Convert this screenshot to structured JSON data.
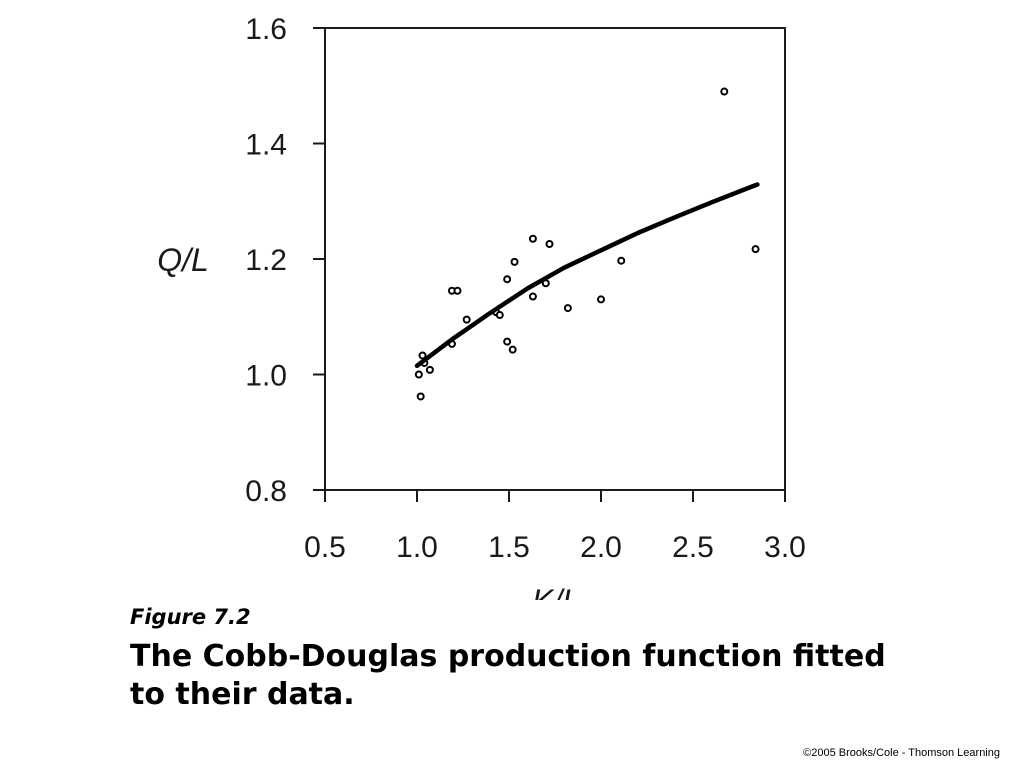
{
  "caption": {
    "figure_label": "Figure 7.2",
    "title": "The Cobb-Douglas production function fitted to their data."
  },
  "credit": "©2005 Brooks/Cole - Thomson Learning",
  "chart_data": {
    "type": "scatter",
    "title": "",
    "xlabel": "K/L",
    "ylabel": "Q/L",
    "xlim": [
      0.5,
      3.0
    ],
    "ylim": [
      0.8,
      1.6
    ],
    "xticks": [
      "0.5",
      "1.0",
      "1.5",
      "2.0",
      "2.5",
      "3.0"
    ],
    "yticks": [
      "0.8",
      "1.0",
      "1.2",
      "1.4",
      "1.6"
    ],
    "grid": false,
    "series": [
      {
        "kind": "points",
        "marker": "hollow-circle",
        "color": "#000000",
        "points": [
          [
            1.01,
            1.0
          ],
          [
            1.02,
            0.962
          ],
          [
            1.03,
            1.033
          ],
          [
            1.04,
            1.02
          ],
          [
            1.07,
            1.008
          ],
          [
            1.19,
            1.053
          ],
          [
            1.19,
            1.145
          ],
          [
            1.22,
            1.145
          ],
          [
            1.27,
            1.095
          ],
          [
            1.43,
            1.108
          ],
          [
            1.45,
            1.103
          ],
          [
            1.49,
            1.057
          ],
          [
            1.49,
            1.165
          ],
          [
            1.52,
            1.043
          ],
          [
            1.53,
            1.195
          ],
          [
            1.63,
            1.235
          ],
          [
            1.63,
            1.135
          ],
          [
            1.7,
            1.158
          ],
          [
            1.72,
            1.226
          ],
          [
            1.82,
            1.115
          ],
          [
            2.0,
            1.13
          ],
          [
            2.11,
            1.197
          ],
          [
            2.67,
            1.49
          ],
          [
            2.84,
            1.217
          ]
        ]
      },
      {
        "kind": "line",
        "color": "#000000",
        "points": [
          [
            1.0,
            1.015
          ],
          [
            1.2,
            1.063
          ],
          [
            1.4,
            1.107
          ],
          [
            1.6,
            1.149
          ],
          [
            1.8,
            1.185
          ],
          [
            2.0,
            1.215
          ],
          [
            2.2,
            1.245
          ],
          [
            2.4,
            1.272
          ],
          [
            2.6,
            1.298
          ],
          [
            2.8,
            1.323
          ],
          [
            2.85,
            1.329
          ]
        ]
      }
    ]
  }
}
